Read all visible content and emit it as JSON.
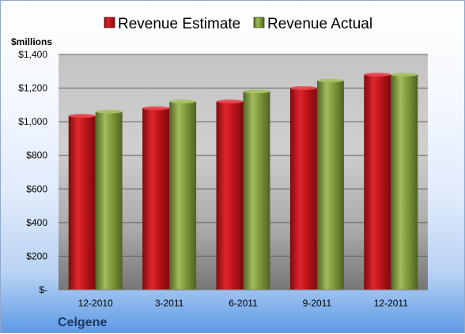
{
  "chart_data": {
    "type": "bar",
    "categories": [
      "12-2010",
      "3-2011",
      "6-2011",
      "9-2011",
      "12-2011"
    ],
    "series": [
      {
        "name": "Revenue Estimate",
        "color": "#c0141b",
        "values": [
          1035,
          1080,
          1120,
          1200,
          1280
        ]
      },
      {
        "name": "Revenue Actual",
        "color": "#7f9a3a",
        "values": [
          1060,
          1120,
          1180,
          1245,
          1280
        ]
      }
    ],
    "ylabel": "$millions",
    "ylim": [
      0,
      1400
    ],
    "yticks": [
      0,
      200,
      400,
      600,
      800,
      1000,
      1200,
      1400
    ],
    "ytick_labels": [
      "$-",
      "$200",
      "$400",
      "$600",
      "$800",
      "$1,000",
      "$1,200",
      "$1,400"
    ],
    "grid": true,
    "legend_position": "top"
  },
  "footer": {
    "company": "Celgene"
  }
}
